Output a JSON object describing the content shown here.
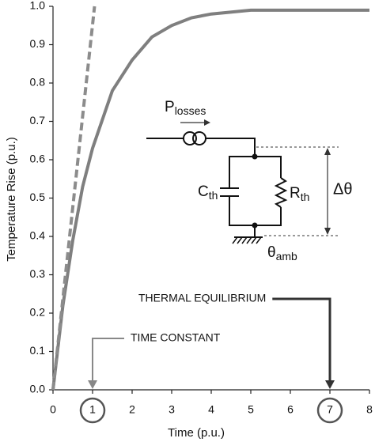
{
  "chart_data": {
    "type": "line",
    "xlabel": "Time (p.u.)",
    "ylabel": "Temperature Rise (p.u.)",
    "xlim": [
      0,
      8
    ],
    "ylim": [
      0,
      1
    ],
    "xticks": [
      0,
      1,
      2,
      3,
      4,
      5,
      6,
      7,
      8
    ],
    "yticks": [
      {
        "value": 0,
        "label": "0.0"
      },
      0.1,
      0.2,
      0.3,
      0.4,
      0.5,
      0.6,
      0.7,
      0.8,
      0.9,
      {
        "value": 1,
        "label": "1.0"
      }
    ],
    "grid": false,
    "series": [
      {
        "color": "#7f7f7f",
        "style": "solid",
        "x": [
          0,
          0.25,
          0.5,
          0.75,
          1,
          1.5,
          2,
          2.5,
          3,
          3.5,
          4,
          5,
          6,
          7,
          8
        ],
        "values": [
          0,
          0.22,
          0.39,
          0.53,
          0.63,
          0.78,
          0.86,
          0.92,
          0.95,
          0.97,
          0.98,
          0.99,
          0.99,
          0.99,
          0.99
        ]
      },
      {
        "color": "#8c8c8c",
        "style": "dashed",
        "x": [
          0,
          1.05
        ],
        "values": [
          0,
          1
        ]
      }
    ],
    "annotations": [
      {
        "text": "TIME CONSTANT",
        "x": 1
      },
      {
        "text": "THERMAL EQUILIBRIUM",
        "x": 7
      }
    ]
  },
  "circuit": {
    "source": "P",
    "source_sub": "losses",
    "capacitor": "C",
    "capacitor_sub": "th",
    "resistor": "R",
    "resistor_sub": "th",
    "delta": "Δθ",
    "ambient": "θ",
    "ambient_sub": "amb"
  }
}
